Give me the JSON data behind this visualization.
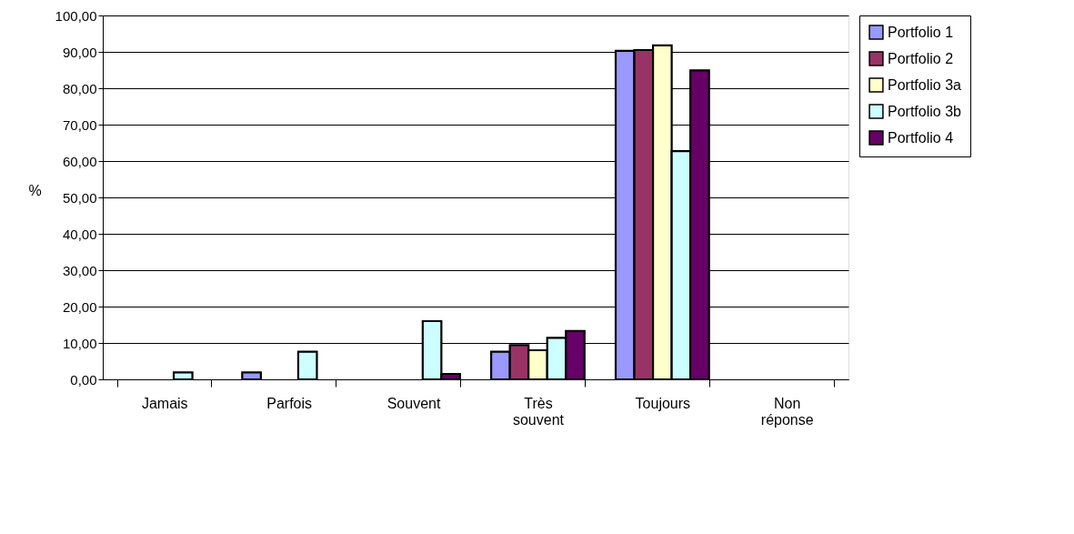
{
  "chart_data": {
    "type": "bar",
    "ylabel": "%",
    "categories": [
      "Jamais",
      "Parfois",
      "Souvent",
      "Très souvent",
      "Toujours",
      "Non réponse"
    ],
    "series": [
      {
        "name": "Portfolio 1",
        "color": "#9999ff",
        "values": [
          null,
          1.9,
          null,
          7.6,
          90.3,
          null
        ]
      },
      {
        "name": "Portfolio 2",
        "color": "#993366",
        "values": [
          null,
          null,
          null,
          9.4,
          90.5,
          null
        ]
      },
      {
        "name": "Portfolio 3a",
        "color": "#ffffcc",
        "values": [
          null,
          null,
          null,
          8.0,
          91.8,
          null
        ]
      },
      {
        "name": "Portfolio 3b",
        "color": "#ccffff",
        "values": [
          1.9,
          7.6,
          16.0,
          11.4,
          62.7,
          null
        ]
      },
      {
        "name": "Portfolio 4",
        "color": "#660066",
        "values": [
          null,
          null,
          1.5,
          13.3,
          84.9,
          null
        ]
      }
    ],
    "ylim": [
      0,
      100
    ],
    "yticks": [
      {
        "value": 0,
        "label": "0,00"
      },
      {
        "value": 10,
        "label": "10,00"
      },
      {
        "value": 20,
        "label": "20,00"
      },
      {
        "value": 30,
        "label": "30,00"
      },
      {
        "value": 40,
        "label": "40,00"
      },
      {
        "value": 50,
        "label": "50,00"
      },
      {
        "value": 60,
        "label": "60,00"
      },
      {
        "value": 70,
        "label": "70,00"
      },
      {
        "value": 80,
        "label": "80,00"
      },
      {
        "value": 90,
        "label": "90,00"
      },
      {
        "value": 100,
        "label": "100,00"
      }
    ],
    "grid": "y",
    "legend": "right"
  }
}
